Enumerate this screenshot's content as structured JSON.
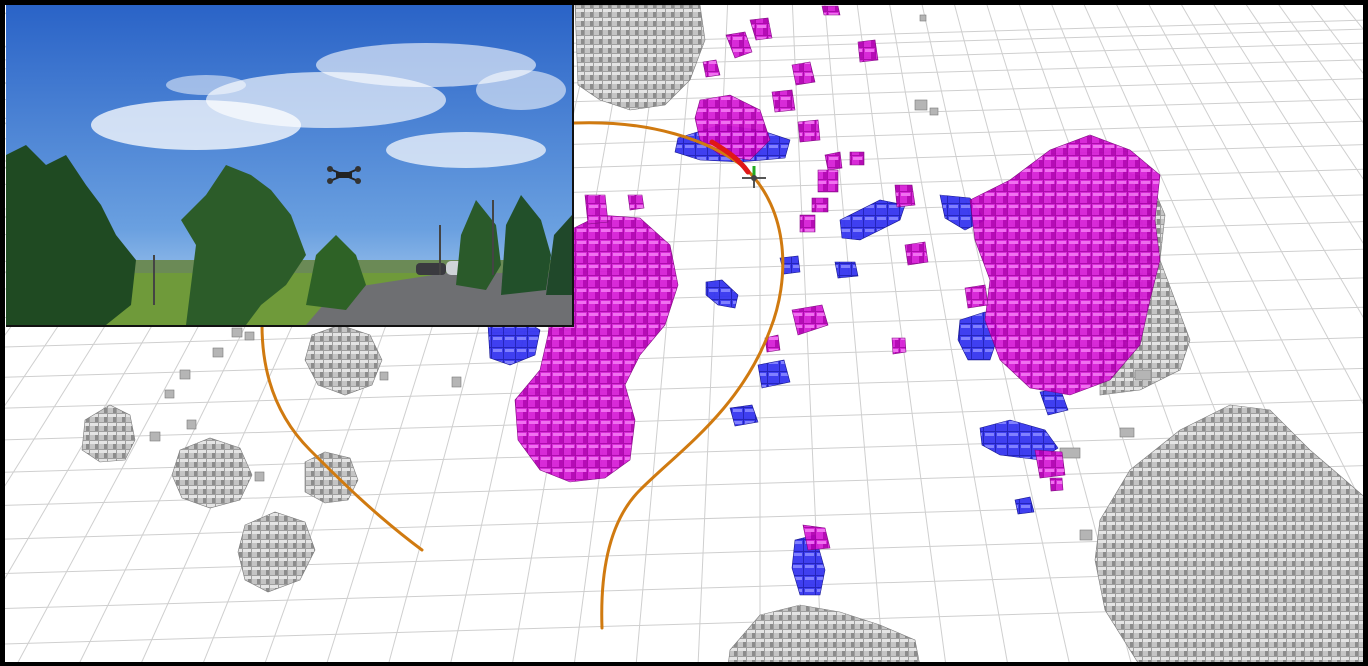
{
  "scene": {
    "view": "3d-occupancy-map",
    "inset_view": "camera-feed",
    "colors": {
      "background": "#ffffff",
      "grid": "#c8c8c8",
      "static_obstacle": "#a6a6a6",
      "dynamic_obstacle": "#d100d1",
      "inflation": "#2c2cff",
      "trajectory": "#d07a10",
      "trajectory_active": "#e01818",
      "frame_border": "#000000"
    },
    "icons": {
      "drone_marker": "drone-axes-icon",
      "camera_drone": "quadcopter-icon"
    }
  }
}
